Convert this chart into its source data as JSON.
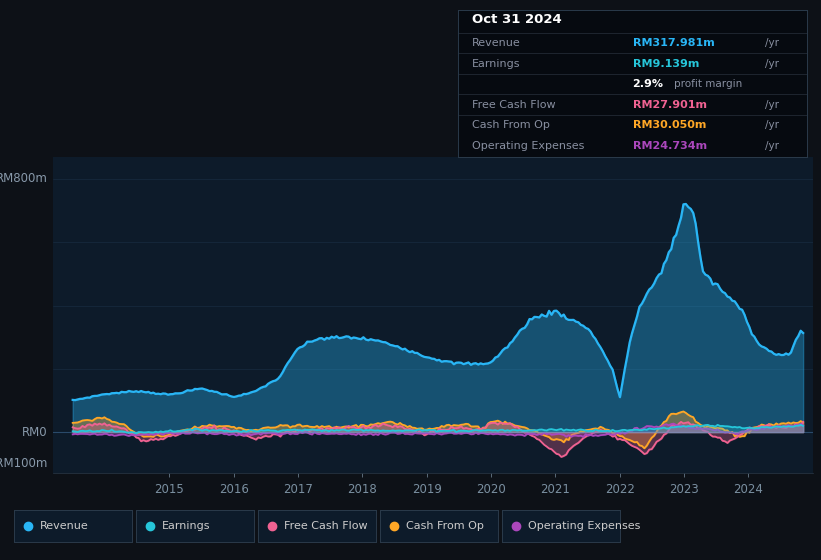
{
  "bg_color": "#0d1117",
  "chart_bg": "#0d1b2a",
  "y_label_top": "RM800m",
  "y_label_zero": "RM0",
  "y_label_bottom": "-RM100m",
  "x_ticks": [
    "2015",
    "2016",
    "2017",
    "2018",
    "2019",
    "2020",
    "2021",
    "2022",
    "2023",
    "2024"
  ],
  "colors": {
    "revenue": "#29b6f6",
    "earnings": "#26c6da",
    "free_cash_flow": "#f06292",
    "cash_from_op": "#ffa726",
    "operating_expenses": "#ab47bc"
  },
  "info_box": {
    "date": "Oct 31 2024",
    "revenue_val": "RM317.981m",
    "earnings_val": "RM9.139m",
    "profit_margin": "2.9%",
    "fcf_val": "RM27.901m",
    "cfo_val": "RM30.050m",
    "opex_val": "RM24.734m"
  },
  "legend": [
    "Revenue",
    "Earnings",
    "Free Cash Flow",
    "Cash From Op",
    "Operating Expenses"
  ],
  "grid_lines": [
    0,
    200,
    400,
    600,
    800
  ],
  "ylim": [
    -130,
    870
  ],
  "xlim": [
    2013.2,
    2025.0
  ]
}
